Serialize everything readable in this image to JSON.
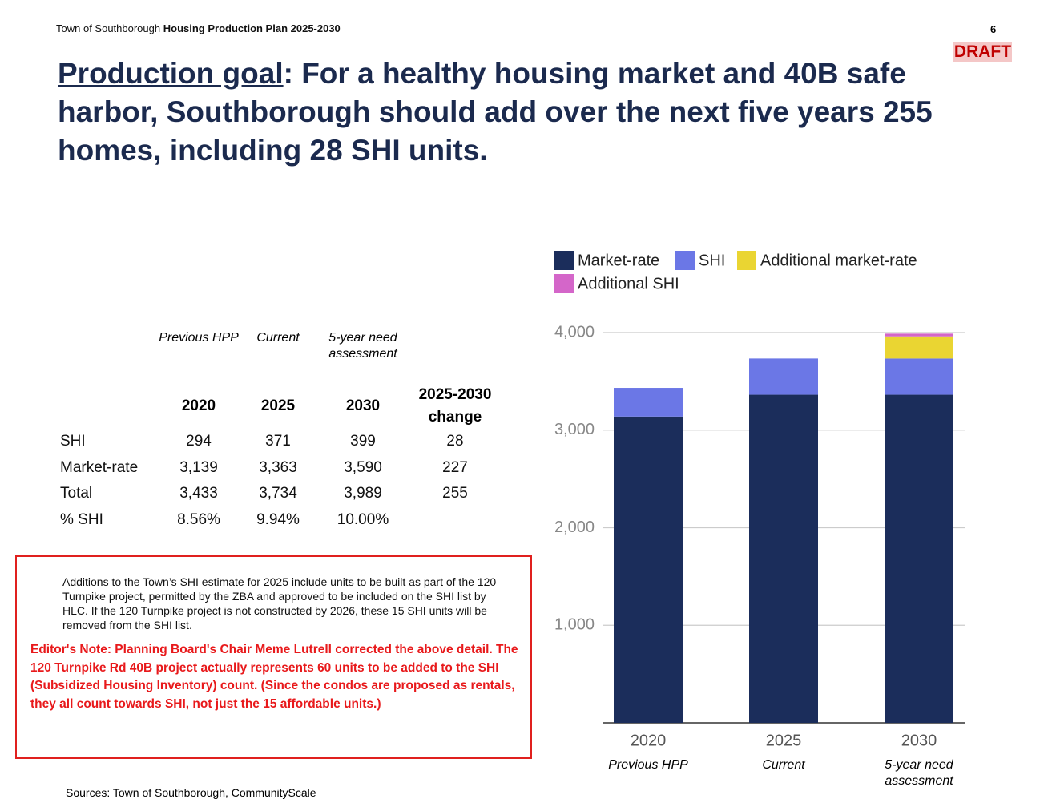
{
  "header": {
    "org": "Town of Southborough",
    "doc": "Housing Production Plan 2025-2030",
    "page": "6",
    "draft": "DRAFT"
  },
  "title": {
    "lead": "Production goal",
    "rest": ": For a healthy housing market and 40B safe harbor, Southborough should add over the next five years 255 homes, including 28 SHI units."
  },
  "table": {
    "subheads": [
      "Previous HPP",
      "Current",
      "5-year need assessment"
    ],
    "columns": [
      "2020",
      "2025",
      "2030",
      "2025-2030 change"
    ],
    "rows": [
      [
        "SHI",
        "294",
        "371",
        "399",
        "28"
      ],
      [
        "Market-rate",
        "3,139",
        "3,363",
        "3,590",
        "227"
      ],
      [
        "Total",
        "3,433",
        "3,734",
        "3,989",
        "255"
      ],
      [
        "% SHI",
        "8.56%",
        "9.94%",
        "10.00%"
      ]
    ]
  },
  "note": "Additions to the Town’s SHI estimate for 2025 include units to be built as part of the 120 Turnpike project, permitted by the ZBA and approved to be included on the SHI list by HLC. If the 120 Turnpike project is not constructed by 2026, these 15 SHI units will be removed from the SHI list.",
  "editor_note": "Editor's Note: Planning Board's Chair Meme Lutrell corrected the above detail. The 120 Turnpike Rd 40B project actually represents 60 units to be added to the SHI (Subsidized Housing Inventory) count. (Since the condos are proposed as rentals, they all count towards SHI, not just the 15 affordable units.)",
  "source": "Sources: Town of Southborough, CommunityScale",
  "chart_data": {
    "type": "stacked_bar",
    "categories": [
      "2020",
      "2025",
      "2030"
    ],
    "category_sublabels": [
      "Previous HPP",
      "Current",
      "5-year need assessment"
    ],
    "series": [
      {
        "name": "Market-rate",
        "color": "#1b2d5b",
        "values": [
          3139,
          3363,
          3363
        ]
      },
      {
        "name": "SHI",
        "color": "#6b77e6",
        "values": [
          294,
          371,
          371
        ]
      },
      {
        "name": "Additional market-rate",
        "color": "#ead532",
        "values": [
          0,
          0,
          227
        ]
      },
      {
        "name": "Additional SHI",
        "color": "#d466c9",
        "values": [
          0,
          0,
          28
        ]
      }
    ],
    "ylim": [
      0,
      4000
    ],
    "yticks": [
      {
        "value": 1000,
        "label": "1,000"
      },
      {
        "value": 2000,
        "label": "2,000"
      },
      {
        "value": 3000,
        "label": "3,000"
      },
      {
        "value": 4000,
        "label": "4,000"
      }
    ],
    "grid": true
  }
}
